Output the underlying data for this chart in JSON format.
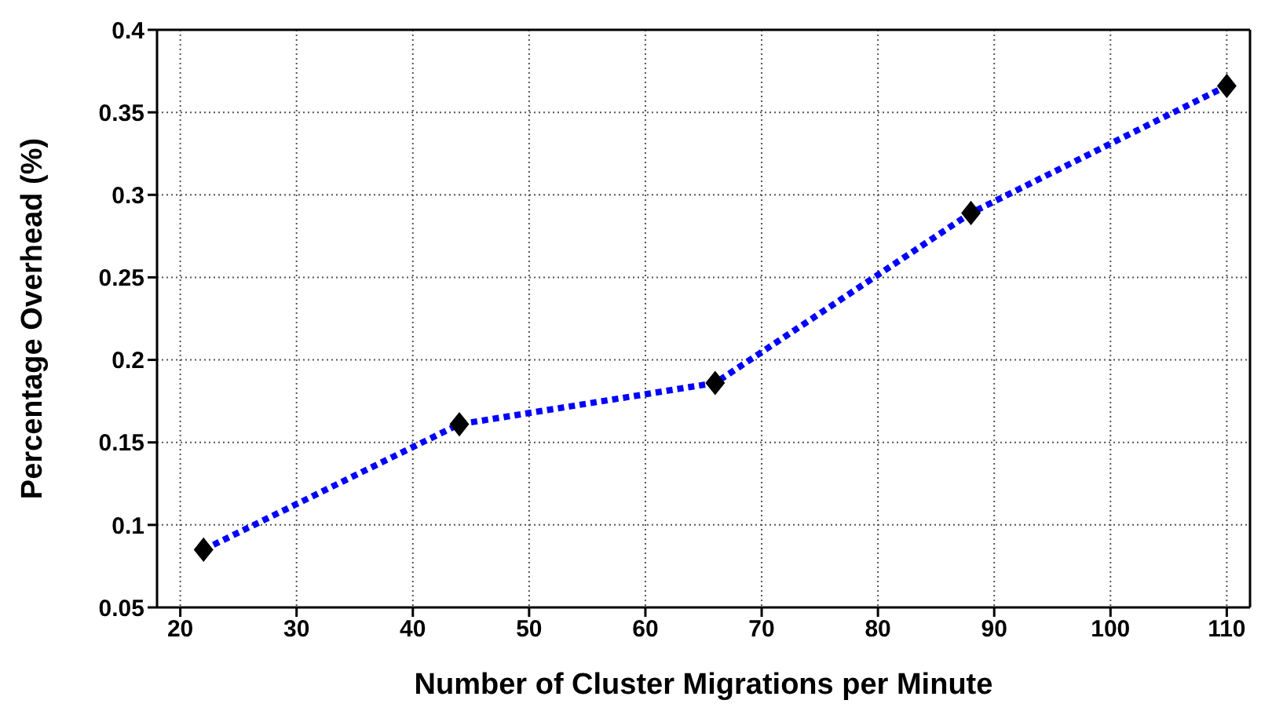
{
  "chart_data": {
    "type": "line",
    "xlabel": "Number of Cluster Migrations per Minute",
    "ylabel": "Percentage Overhead (%)",
    "x": [
      22,
      44,
      66,
      88,
      110
    ],
    "series": [
      {
        "color": "#0000ff",
        "values": [
          0.085,
          0.161,
          0.186,
          0.289,
          0.366
        ]
      }
    ],
    "xlim": [
      18,
      112
    ],
    "xticks": [
      20,
      30,
      40,
      50,
      60,
      70,
      80,
      90,
      100,
      110
    ],
    "ylim": [
      0.05,
      0.4
    ],
    "yticks": [
      0.05,
      0.1,
      0.15,
      0.2,
      0.25,
      0.3,
      0.35,
      0.4
    ],
    "grid": true,
    "marker": "diamond",
    "line_style": "dotted",
    "legend": false
  }
}
